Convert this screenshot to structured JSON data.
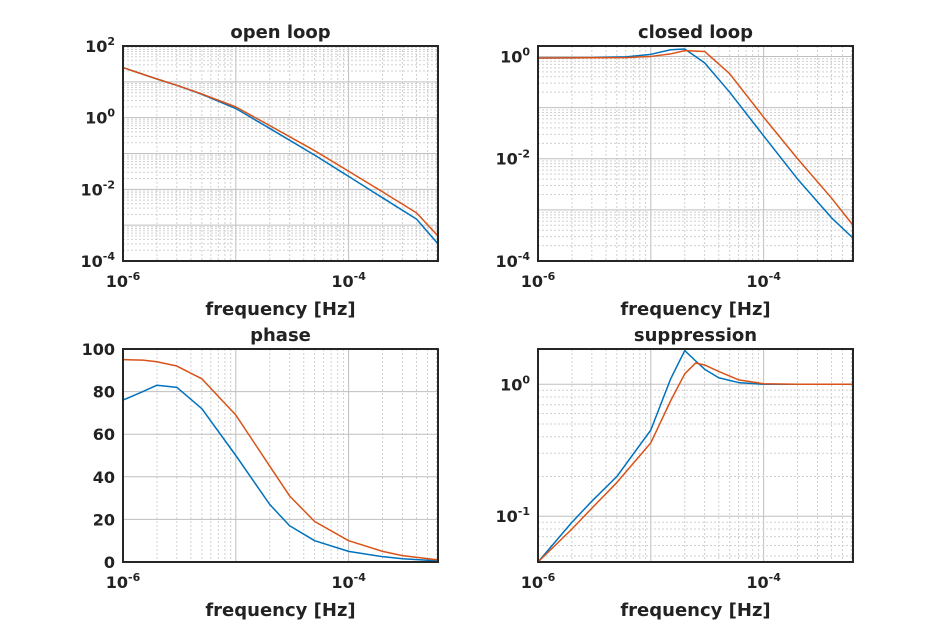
{
  "colors": {
    "series1": "#0072BD",
    "series2": "#D95319",
    "axis": "#262626",
    "text": "#222222",
    "grid": "#bfbfbf"
  },
  "chart_data": [
    {
      "type": "line",
      "title": "open loop",
      "xlabel": "frequency [Hz]",
      "ylabel": "",
      "xscale": "log",
      "yscale": "log",
      "xlim": [
        1e-06,
        0.00062
      ],
      "ylim": [
        0.0001,
        100
      ],
      "grid": true,
      "xticks": [
        {
          "base": "10",
          "exp": "-6",
          "value": 1e-06
        },
        {
          "base": "10",
          "exp": "-4",
          "value": 0.0001
        }
      ],
      "yticks": [
        {
          "base": "10",
          "exp": "2",
          "value": 100
        },
        {
          "base": "10",
          "exp": "0",
          "value": 1
        },
        {
          "base": "10",
          "exp": "-2",
          "value": 0.01
        },
        {
          "base": "10",
          "exp": "-4",
          "value": 0.0001
        }
      ],
      "x": [
        1e-06,
        2e-06,
        3e-06,
        5e-06,
        1e-05,
        2e-05,
        5e-05,
        0.0001,
        0.0002,
        0.0004,
        0.00062
      ],
      "series": [
        {
          "values": [
            25,
            12,
            8,
            4.5,
            1.8,
            0.5,
            0.09,
            0.023,
            0.0058,
            0.00147,
            0.0003
          ]
        },
        {
          "values": [
            25,
            12,
            8,
            4.6,
            2.0,
            0.6,
            0.12,
            0.032,
            0.0085,
            0.0022,
            0.0005
          ]
        }
      ]
    },
    {
      "type": "line",
      "title": "closed loop",
      "xlabel": "frequency [Hz]",
      "ylabel": "",
      "xscale": "log",
      "yscale": "log",
      "xlim": [
        1e-06,
        0.00062
      ],
      "ylim": [
        0.0001,
        1.6
      ],
      "grid": true,
      "xticks": [
        {
          "base": "10",
          "exp": "-6",
          "value": 1e-06
        },
        {
          "base": "10",
          "exp": "-4",
          "value": 0.0001
        }
      ],
      "yticks": [
        {
          "base": "10",
          "exp": "0",
          "value": 1
        },
        {
          "base": "10",
          "exp": "-2",
          "value": 0.01
        },
        {
          "base": "10",
          "exp": "-4",
          "value": 0.0001
        }
      ],
      "x": [
        1e-06,
        3e-06,
        6e-06,
        1e-05,
        1.5e-05,
        2e-05,
        3e-05,
        5e-05,
        0.0001,
        0.0002,
        0.0004,
        0.00062
      ],
      "series": [
        {
          "values": [
            0.93,
            0.94,
            0.98,
            1.1,
            1.35,
            1.4,
            0.75,
            0.2,
            0.028,
            0.004,
            0.0007,
            0.00028
          ]
        },
        {
          "values": [
            0.93,
            0.94,
            0.95,
            1.0,
            1.12,
            1.3,
            1.25,
            0.46,
            0.065,
            0.01,
            0.0017,
            0.0005
          ]
        }
      ]
    },
    {
      "type": "line",
      "title": "phase",
      "xlabel": "frequency [Hz]",
      "ylabel": "",
      "xscale": "log",
      "yscale": "linear",
      "xlim": [
        1e-06,
        0.00062
      ],
      "ylim": [
        0,
        100
      ],
      "grid": true,
      "xticks": [
        {
          "base": "10",
          "exp": "-6",
          "value": 1e-06
        },
        {
          "base": "10",
          "exp": "-4",
          "value": 0.0001
        }
      ],
      "yticks": [
        {
          "base": "100",
          "exp": "",
          "value": 100
        },
        {
          "base": "80",
          "exp": "",
          "value": 80
        },
        {
          "base": "60",
          "exp": "",
          "value": 60
        },
        {
          "base": "40",
          "exp": "",
          "value": 40
        },
        {
          "base": "20",
          "exp": "",
          "value": 20
        },
        {
          "base": "0",
          "exp": "",
          "value": 0
        }
      ],
      "x": [
        1e-06,
        1.5e-06,
        2e-06,
        3e-06,
        5e-06,
        1e-05,
        2e-05,
        3e-05,
        5e-05,
        0.0001,
        0.0002,
        0.0003,
        0.00062
      ],
      "series": [
        {
          "values": [
            76,
            80,
            83,
            82,
            72,
            50,
            27,
            17,
            10,
            5,
            2.5,
            1.5,
            0.5
          ]
        },
        {
          "values": [
            95,
            94.8,
            94,
            92,
            86,
            69,
            45,
            31,
            19,
            10,
            5,
            3,
            1
          ]
        }
      ]
    },
    {
      "type": "line",
      "title": "suppression",
      "xlabel": "frequency [Hz]",
      "ylabel": "",
      "xscale": "log",
      "yscale": "log",
      "xlim": [
        1e-06,
        0.00062
      ],
      "ylim": [
        0.045,
        1.85
      ],
      "grid": true,
      "xticks": [
        {
          "base": "10",
          "exp": "-6",
          "value": 1e-06
        },
        {
          "base": "10",
          "exp": "-4",
          "value": 0.0001
        }
      ],
      "yticks": [
        {
          "base": "10",
          "exp": "0",
          "value": 1
        },
        {
          "base": "10",
          "exp": "-1",
          "value": 0.1
        }
      ],
      "x": [
        1e-06,
        2e-06,
        3e-06,
        5e-06,
        1e-05,
        1.5e-05,
        2e-05,
        2.5e-05,
        3e-05,
        4e-05,
        6e-05,
        0.0001,
        0.0002,
        0.00062
      ],
      "series": [
        {
          "values": [
            0.045,
            0.09,
            0.13,
            0.2,
            0.45,
            1.1,
            1.8,
            1.5,
            1.3,
            1.12,
            1.03,
            1.0,
            1.0,
            1.0
          ]
        },
        {
          "values": [
            0.045,
            0.08,
            0.115,
            0.18,
            0.36,
            0.75,
            1.2,
            1.45,
            1.4,
            1.25,
            1.08,
            1.01,
            1.0,
            1.0
          ]
        }
      ]
    }
  ]
}
